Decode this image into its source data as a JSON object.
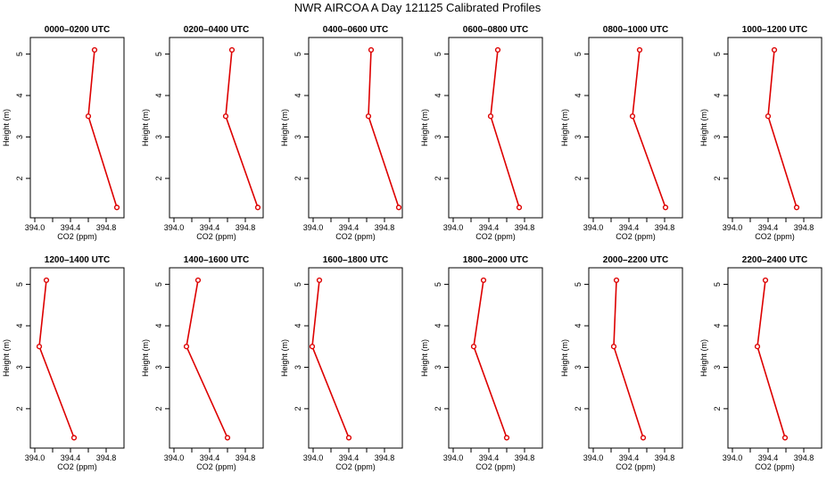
{
  "title": "NWR AIRCOA A  Day 121125  Calibrated Profiles",
  "colors": {
    "series": "#dd0000",
    "axis": "#000000",
    "background": "#ffffff"
  },
  "chart_data": [
    {
      "type": "line",
      "title": "0000–0200 UTC",
      "xlabel": "CO2 (ppm)",
      "ylabel": "Height (m)",
      "x": [
        394.92,
        394.6,
        394.67
      ],
      "y": [
        1.3,
        3.5,
        5.1
      ],
      "xlim": [
        393.95,
        395.0
      ],
      "ylim": [
        1.05,
        5.4
      ],
      "xticks": [
        394.0,
        394.4,
        394.8
      ],
      "xtick_labels": [
        "394.0",
        "394.4",
        "394.8"
      ],
      "yticks": [
        2,
        3,
        4,
        5
      ],
      "ytick_labels": [
        "2",
        "3",
        "4",
        "5"
      ]
    },
    {
      "type": "line",
      "title": "0200–0400 UTC",
      "xlabel": "CO2 (ppm)",
      "ylabel": "Height (m)",
      "x": [
        394.94,
        394.58,
        394.65
      ],
      "y": [
        1.3,
        3.5,
        5.1
      ],
      "xlim": [
        393.95,
        395.0
      ],
      "ylim": [
        1.05,
        5.4
      ],
      "xticks": [
        394.0,
        394.4,
        394.8
      ],
      "xtick_labels": [
        "394.0",
        "394.4",
        "394.8"
      ],
      "yticks": [
        2,
        3,
        4,
        5
      ],
      "ytick_labels": [
        "2",
        "3",
        "4",
        "5"
      ]
    },
    {
      "type": "line",
      "title": "0400–0600 UTC",
      "xlabel": "CO2 (ppm)",
      "ylabel": "Height (m)",
      "x": [
        394.96,
        394.62,
        394.65
      ],
      "y": [
        1.3,
        3.5,
        5.1
      ],
      "xlim": [
        393.95,
        395.0
      ],
      "ylim": [
        1.05,
        5.4
      ],
      "xticks": [
        394.0,
        394.4,
        394.8
      ],
      "xtick_labels": [
        "394.0",
        "394.4",
        "394.8"
      ],
      "yticks": [
        2,
        3,
        4,
        5
      ],
      "ytick_labels": [
        "2",
        "3",
        "4",
        "5"
      ]
    },
    {
      "type": "line",
      "title": "0600–0800 UTC",
      "xlabel": "CO2 (ppm)",
      "ylabel": "Height (m)",
      "x": [
        394.74,
        394.42,
        394.5
      ],
      "y": [
        1.3,
        3.5,
        5.1
      ],
      "xlim": [
        393.95,
        395.0
      ],
      "ylim": [
        1.05,
        5.4
      ],
      "xticks": [
        394.0,
        394.4,
        394.8
      ],
      "xtick_labels": [
        "394.0",
        "394.4",
        "394.8"
      ],
      "yticks": [
        2,
        3,
        4,
        5
      ],
      "ytick_labels": [
        "2",
        "3",
        "4",
        "5"
      ]
    },
    {
      "type": "line",
      "title": "0800–1000 UTC",
      "xlabel": "CO2 (ppm)",
      "ylabel": "Height (m)",
      "x": [
        394.81,
        394.44,
        394.52
      ],
      "y": [
        1.3,
        3.5,
        5.1
      ],
      "xlim": [
        393.95,
        395.0
      ],
      "ylim": [
        1.05,
        5.4
      ],
      "xticks": [
        394.0,
        394.4,
        394.8
      ],
      "xtick_labels": [
        "394.0",
        "394.4",
        "394.8"
      ],
      "yticks": [
        2,
        3,
        4,
        5
      ],
      "ytick_labels": [
        "2",
        "3",
        "4",
        "5"
      ]
    },
    {
      "type": "line",
      "title": "1000–1200 UTC",
      "xlabel": "CO2 (ppm)",
      "ylabel": "Height (m)",
      "x": [
        394.72,
        394.4,
        394.47
      ],
      "y": [
        1.3,
        3.5,
        5.1
      ],
      "xlim": [
        393.95,
        395.0
      ],
      "ylim": [
        1.05,
        5.4
      ],
      "xticks": [
        394.0,
        394.4,
        394.8
      ],
      "xtick_labels": [
        "394.0",
        "394.4",
        "394.8"
      ],
      "yticks": [
        2,
        3,
        4,
        5
      ],
      "ytick_labels": [
        "2",
        "3",
        "4",
        "5"
      ]
    },
    {
      "type": "line",
      "title": "1200–1400 UTC",
      "xlabel": "CO2 (ppm)",
      "ylabel": "Height (m)",
      "x": [
        394.44,
        394.05,
        394.13
      ],
      "y": [
        1.3,
        3.5,
        5.1
      ],
      "xlim": [
        393.95,
        395.0
      ],
      "ylim": [
        1.05,
        5.4
      ],
      "xticks": [
        394.0,
        394.4,
        394.8
      ],
      "xtick_labels": [
        "394.0",
        "394.4",
        "394.8"
      ],
      "yticks": [
        2,
        3,
        4,
        5
      ],
      "ytick_labels": [
        "2",
        "3",
        "4",
        "5"
      ]
    },
    {
      "type": "line",
      "title": "1400–1600 UTC",
      "xlabel": "CO2 (ppm)",
      "ylabel": "Height (m)",
      "x": [
        394.6,
        394.14,
        394.27
      ],
      "y": [
        1.3,
        3.5,
        5.1
      ],
      "xlim": [
        393.95,
        395.0
      ],
      "ylim": [
        1.05,
        5.4
      ],
      "xticks": [
        394.0,
        394.4,
        394.8
      ],
      "xtick_labels": [
        "394.0",
        "394.4",
        "394.8"
      ],
      "yticks": [
        2,
        3,
        4,
        5
      ],
      "ytick_labels": [
        "2",
        "3",
        "4",
        "5"
      ]
    },
    {
      "type": "line",
      "title": "1600–1800 UTC",
      "xlabel": "CO2 (ppm)",
      "ylabel": "Height (m)",
      "x": [
        394.4,
        393.99,
        394.07
      ],
      "y": [
        1.3,
        3.5,
        5.1
      ],
      "xlim": [
        393.95,
        395.0
      ],
      "ylim": [
        1.05,
        5.4
      ],
      "xticks": [
        394.0,
        394.4,
        394.8
      ],
      "xtick_labels": [
        "394.0",
        "394.4",
        "394.8"
      ],
      "yticks": [
        2,
        3,
        4,
        5
      ],
      "ytick_labels": [
        "2",
        "3",
        "4",
        "5"
      ]
    },
    {
      "type": "line",
      "title": "1800–2000 UTC",
      "xlabel": "CO2 (ppm)",
      "ylabel": "Height (m)",
      "x": [
        394.6,
        394.23,
        394.34
      ],
      "y": [
        1.3,
        3.5,
        5.1
      ],
      "xlim": [
        393.95,
        395.0
      ],
      "ylim": [
        1.05,
        5.4
      ],
      "xticks": [
        394.0,
        394.4,
        394.8
      ],
      "xtick_labels": [
        "394.0",
        "394.4",
        "394.8"
      ],
      "yticks": [
        2,
        3,
        4,
        5
      ],
      "ytick_labels": [
        "2",
        "3",
        "4",
        "5"
      ]
    },
    {
      "type": "line",
      "title": "2000–2200 UTC",
      "xlabel": "CO2 (ppm)",
      "ylabel": "Height (m)",
      "x": [
        394.56,
        394.23,
        394.26
      ],
      "y": [
        1.3,
        3.5,
        5.1
      ],
      "xlim": [
        393.95,
        395.0
      ],
      "ylim": [
        1.05,
        5.4
      ],
      "xticks": [
        394.0,
        394.4,
        394.8
      ],
      "xtick_labels": [
        "394.0",
        "394.4",
        "394.8"
      ],
      "yticks": [
        2,
        3,
        4,
        5
      ],
      "ytick_labels": [
        "2",
        "3",
        "4",
        "5"
      ]
    },
    {
      "type": "line",
      "title": "2200–2400 UTC",
      "xlabel": "CO2 (ppm)",
      "ylabel": "Height (m)",
      "x": [
        394.59,
        394.28,
        394.37
      ],
      "y": [
        1.3,
        3.5,
        5.1
      ],
      "xlim": [
        393.95,
        395.0
      ],
      "ylim": [
        1.05,
        5.4
      ],
      "xticks": [
        394.0,
        394.4,
        394.8
      ],
      "xtick_labels": [
        "394.0",
        "394.4",
        "394.8"
      ],
      "yticks": [
        2,
        3,
        4,
        5
      ],
      "ytick_labels": [
        "2",
        "3",
        "4",
        "5"
      ]
    }
  ]
}
